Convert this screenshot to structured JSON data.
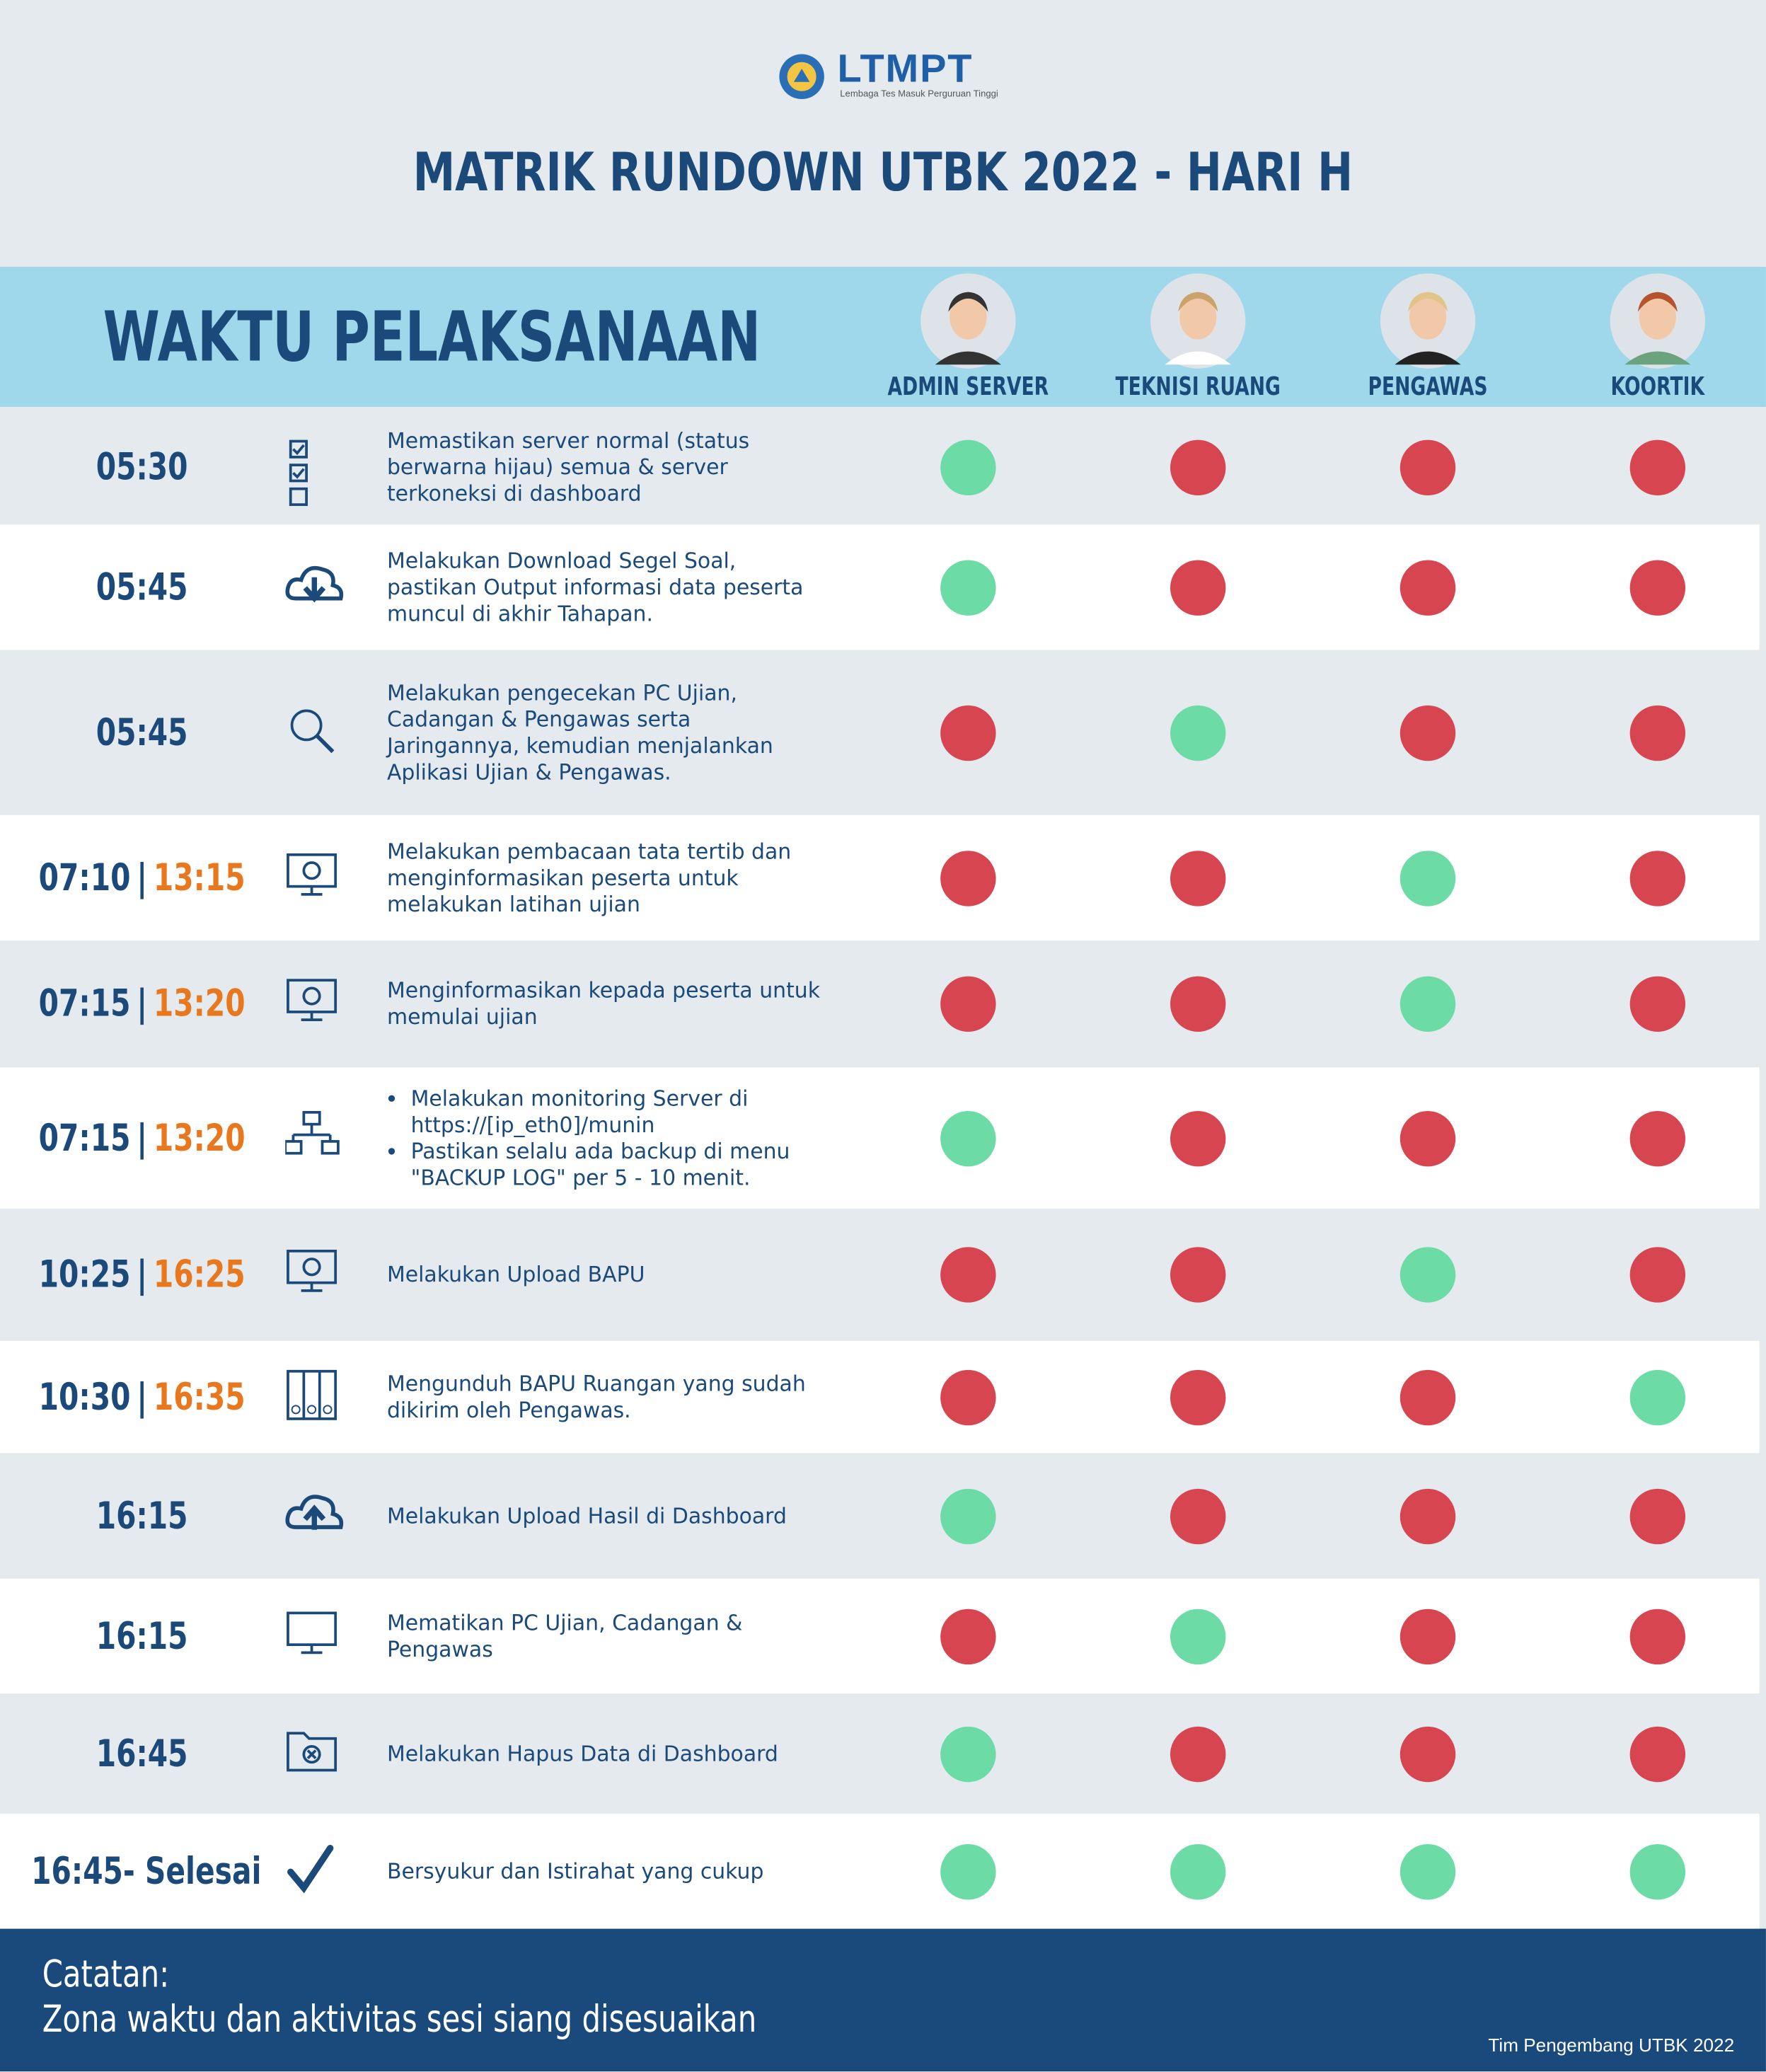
{
  "header": {
    "logo": "LTMPT",
    "logo_subtitle": "Lembaga Tes Masuk Perguruan Tinggi",
    "title": "MATRIK RUNDOWN UTBK 2022 - HARI H"
  },
  "table": {
    "time_header": "WAKTU PELAKSANAAN",
    "roles": [
      "ADMIN SERVER",
      "TEKNISI RUANG",
      "PENGAWAS",
      "KOORTIK"
    ],
    "colors": {
      "assigned": "#6ddba6",
      "not_assigned": "#d64550",
      "time": "#1b4a7a",
      "time_afternoon": "#e8771e"
    },
    "rows": [
      {
        "time": "05:30",
        "description": "Memastikan server normal (status berwarna hijau) semua & server terkoneksi di dashboard",
        "assigned": [
          true,
          false,
          false,
          false
        ]
      },
      {
        "time": "05:45",
        "description": "Melakukan Download Segel Soal, pastikan Output informasi data peserta muncul di akhir Tahapan.",
        "assigned": [
          true,
          false,
          false,
          false
        ]
      },
      {
        "time": "05:45",
        "description": "Melakukan pengecekan PC Ujian, Cadangan & Pengawas serta Jaringannya, kemudian menjalankan Aplikasi Ujian & Pengawas.",
        "assigned": [
          false,
          true,
          false,
          false
        ]
      },
      {
        "time": "07:10",
        "separator": "|",
        "time_afternoon": "13:15",
        "description": "Melakukan pembacaan tata tertib dan menginformasikan peserta untuk melakukan latihan ujian",
        "assigned": [
          false,
          false,
          true,
          false
        ]
      },
      {
        "time": "07:15",
        "separator": "|",
        "time_afternoon": "13:20",
        "description": "Menginformasikan kepada peserta untuk memulai ujian",
        "assigned": [
          false,
          false,
          true,
          false
        ]
      },
      {
        "time": "07:15",
        "separator": "|",
        "time_afternoon": "13:20",
        "description": [
          "Melakukan monitoring Server di https://[ip_eth0]/munin",
          "Pastikan selalu ada backup di menu \"BACKUP LOG\" per 5 - 10 menit."
        ],
        "assigned": [
          true,
          false,
          false,
          false
        ]
      },
      {
        "time": "10:25",
        "separator": "|",
        "time_afternoon": "16:25",
        "description": "Melakukan Upload BAPU",
        "assigned": [
          false,
          false,
          true,
          false
        ]
      },
      {
        "time": "10:30",
        "separator": "|",
        "time_afternoon": "16:35",
        "description": "Mengunduh BAPU Ruangan yang sudah dikirim oleh Pengawas.",
        "assigned": [
          false,
          false,
          false,
          true
        ]
      },
      {
        "time": "16:15",
        "description": "Melakukan Upload Hasil di Dashboard",
        "assigned": [
          true,
          false,
          false,
          false
        ]
      },
      {
        "time": "16:15",
        "description": "Mematikan PC Ujian, Cadangan & Pengawas",
        "assigned": [
          false,
          true,
          false,
          false
        ]
      },
      {
        "time": "16:45",
        "description": "Melakukan Hapus Data di Dashboard",
        "assigned": [
          true,
          false,
          false,
          false
        ]
      },
      {
        "time": "16:45- Selesai",
        "description": "Bersyukur dan Istirahat yang cukup",
        "assigned": [
          true,
          true,
          true,
          true
        ]
      }
    ]
  },
  "footer": {
    "note_title": "Catatan:",
    "note": "Zona waktu dan aktivitas sesi siang disesuaikan",
    "credit": "Tim Pengembang UTBK 2022"
  }
}
